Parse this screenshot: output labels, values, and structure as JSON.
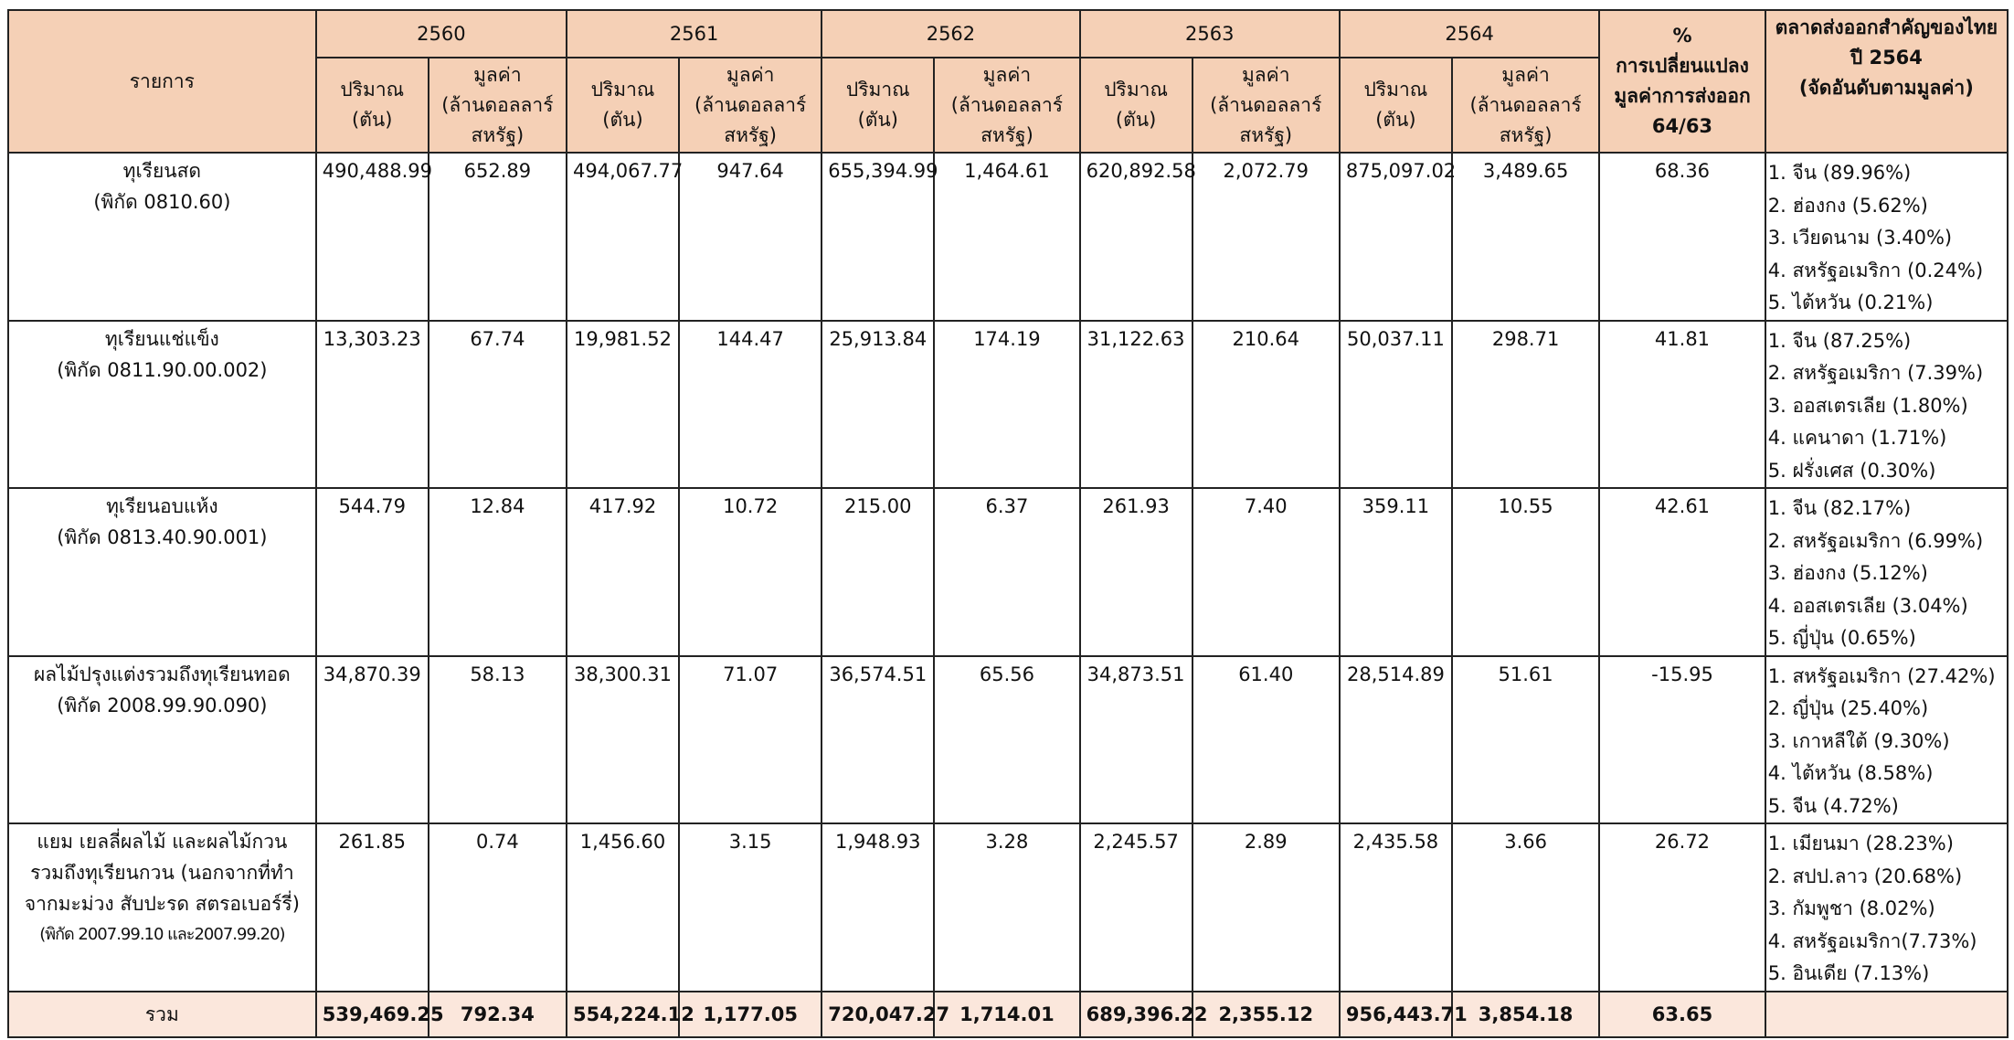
{
  "table": {
    "header": {
      "item": "รายการ",
      "years": [
        "2560",
        "2561",
        "2562",
        "2563",
        "2564"
      ],
      "qty_label": [
        "ปริมาณ",
        "(ตัน)"
      ],
      "val_label": [
        "มูลค่า",
        "(ล้านดอลลาร์",
        "สหรัฐ)"
      ],
      "change_label": [
        "%",
        "การเปลี่ยนแปลง",
        "มูลค่าการส่งออก",
        "64/63"
      ],
      "markets_label": [
        "ตลาดส่งออกสำคัญของไทย",
        "ปี 2564",
        "(จัดอันดับตามมูลค่า)"
      ]
    },
    "rows": [
      {
        "item": [
          "ทุเรียนสด",
          "(พิกัด 0810.60)"
        ],
        "values": [
          "490,488.99",
          "652.89",
          "494,067.77",
          "947.64",
          "655,394.99",
          "1,464.61",
          "620,892.58",
          "2,072.79",
          "875,097.02",
          "3,489.65"
        ],
        "change": "68.36",
        "markets": [
          "1. จีน (89.96%)",
          "2. ฮ่องกง (5.62%)",
          "3. เวียดนาม (3.40%)",
          "4. สหรัฐอเมริกา (0.24%)",
          "5. ไต้หวัน (0.21%)"
        ]
      },
      {
        "item": [
          "ทุเรียนแช่แข็ง",
          "(พิกัด 0811.90.00.002)"
        ],
        "values": [
          "13,303.23",
          "67.74",
          "19,981.52",
          "144.47",
          "25,913.84",
          "174.19",
          "31,122.63",
          "210.64",
          "50,037.11",
          "298.71"
        ],
        "change": "41.81",
        "markets": [
          "1. จีน (87.25%)",
          "2. สหรัฐอเมริกา (7.39%)",
          "3. ออสเตรเลีย (1.80%)",
          "4. แคนาดา (1.71%)",
          "5. ฝรั่งเศส (0.30%)"
        ]
      },
      {
        "item": [
          "ทุเรียนอบแห้ง",
          "(พิกัด 0813.40.90.001)"
        ],
        "values": [
          "544.79",
          "12.84",
          "417.92",
          "10.72",
          "215.00",
          "6.37",
          "261.93",
          "7.40",
          "359.11",
          "10.55"
        ],
        "change": "42.61",
        "markets": [
          "1. จีน (82.17%)",
          "2. สหรัฐอเมริกา (6.99%)",
          "3. ฮ่องกง (5.12%)",
          "4. ออสเตรเลีย (3.04%)",
          "5. ญี่ปุ่น (0.65%)"
        ]
      },
      {
        "item": [
          "ผลไม้ปรุงแต่งรวมถึงทุเรียนทอด",
          "(พิกัด 2008.99.90.090)"
        ],
        "values": [
          "34,870.39",
          "58.13",
          "38,300.31",
          "71.07",
          "36,574.51",
          "65.56",
          "34,873.51",
          "61.40",
          "28,514.89",
          "51.61"
        ],
        "change": "-15.95",
        "markets": [
          "1. สหรัฐอเมริกา (27.42%)",
          "2. ญี่ปุ่น (25.40%)",
          "3. เกาหลีใต้ (9.30%)",
          "4. ไต้หวัน (8.58%)",
          "5. จีน (4.72%)"
        ]
      },
      {
        "item": [
          "แยม เยลลี่ผลไม้ และผลไม้กวน",
          "รวมถึงทุเรียนกวน (นอกจากที่ทำ",
          "จากมะม่วง สับปะรด สตรอเบอร์รี่)",
          "(พิกัด 2007.99.10 และ2007.99.20)"
        ],
        "values": [
          "261.85",
          "0.74",
          "1,456.60",
          "3.15",
          "1,948.93",
          "3.28",
          "2,245.57",
          "2.89",
          "2,435.58",
          "3.66"
        ],
        "change": "26.72",
        "markets": [
          "1. เมียนมา (28.23%)",
          "2. สปป.ลาว (20.68%)",
          "3. กัมพูชา (8.02%)",
          "4. สหรัฐอเมริกา(7.73%)",
          "5. อินเดีย (7.13%)"
        ]
      }
    ],
    "total": {
      "label": "รวม",
      "values": [
        "539,469.25",
        "792.34",
        "554,224.12",
        "1,177.05",
        "720,047.27",
        "1,714.01",
        "689,396.22",
        "2,355.12",
        "956,443.71",
        "3,854.18"
      ],
      "change": "63.65"
    }
  }
}
